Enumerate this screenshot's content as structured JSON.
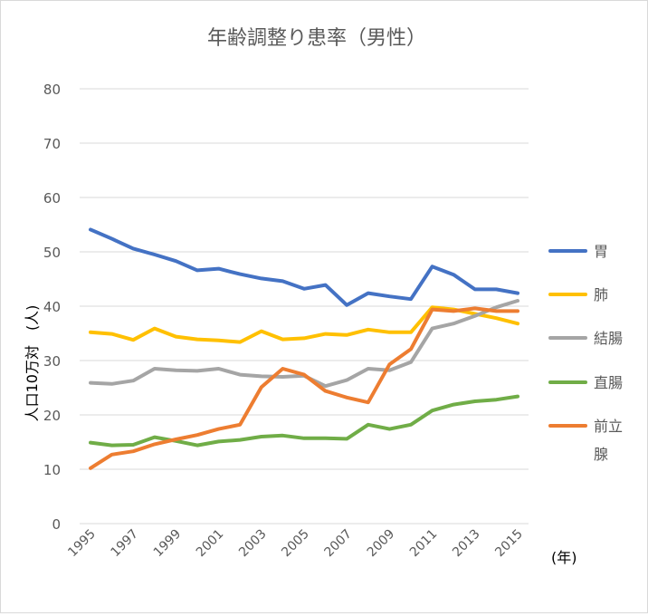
{
  "chart_data": {
    "type": "line",
    "title": "年齢調整り患率（男性）",
    "ylabel": "人口10万対　(人)",
    "xlabel": "(年)",
    "ylim": [
      0,
      80
    ],
    "yticks": [
      0,
      10,
      20,
      30,
      40,
      50,
      60,
      70,
      80
    ],
    "grid": true,
    "legend_position": "right",
    "x": [
      1995,
      1996,
      1997,
      1998,
      1999,
      2000,
      2001,
      2002,
      2003,
      2004,
      2005,
      2006,
      2007,
      2008,
      2009,
      2010,
      2011,
      2012,
      2013,
      2014,
      2015
    ],
    "xtick_labels": [
      "1995",
      "1997",
      "1999",
      "2001",
      "2003",
      "2005",
      "2007",
      "2009",
      "2011",
      "2013",
      "2015"
    ],
    "series": [
      {
        "name": "胃",
        "color": "#4472c4",
        "values": [
          54.1,
          52.4,
          50.6,
          49.5,
          48.3,
          46.6,
          46.9,
          45.9,
          45.1,
          44.6,
          43.2,
          43.9,
          40.2,
          42.4,
          41.8,
          41.3,
          47.3,
          45.8,
          43.1,
          43.1,
          42.4
        ]
      },
      {
        "name": "肺",
        "color": "#ffc000",
        "values": [
          35.2,
          34.9,
          33.8,
          35.9,
          34.4,
          33.9,
          33.7,
          33.4,
          35.4,
          33.9,
          34.1,
          34.9,
          34.7,
          35.7,
          35.2,
          35.2,
          39.8,
          39.4,
          38.6,
          37.8,
          36.8
        ]
      },
      {
        "name": "結腸",
        "color": "#a5a5a5",
        "values": [
          25.9,
          25.7,
          26.3,
          28.5,
          28.2,
          28.1,
          28.5,
          27.4,
          27.1,
          27.0,
          27.2,
          25.3,
          26.4,
          28.5,
          28.2,
          29.7,
          35.9,
          36.8,
          38.2,
          39.8,
          41.0
        ]
      },
      {
        "name": "直腸",
        "color": "#70ad47",
        "values": [
          14.9,
          14.4,
          14.5,
          15.9,
          15.2,
          14.4,
          15.1,
          15.4,
          16.0,
          16.2,
          15.7,
          15.7,
          15.6,
          18.2,
          17.4,
          18.2,
          20.8,
          21.9,
          22.5,
          22.8,
          23.4
        ]
      },
      {
        "name": "前立腺",
        "name_lines": [
          "前立",
          "腺"
        ],
        "color": "#ed7d31",
        "values": [
          10.2,
          12.7,
          13.3,
          14.6,
          15.5,
          16.3,
          17.4,
          18.2,
          25.1,
          28.5,
          27.4,
          24.4,
          23.2,
          22.3,
          29.3,
          32.1,
          39.4,
          39.1,
          39.6,
          39.1,
          39.1
        ]
      }
    ]
  }
}
